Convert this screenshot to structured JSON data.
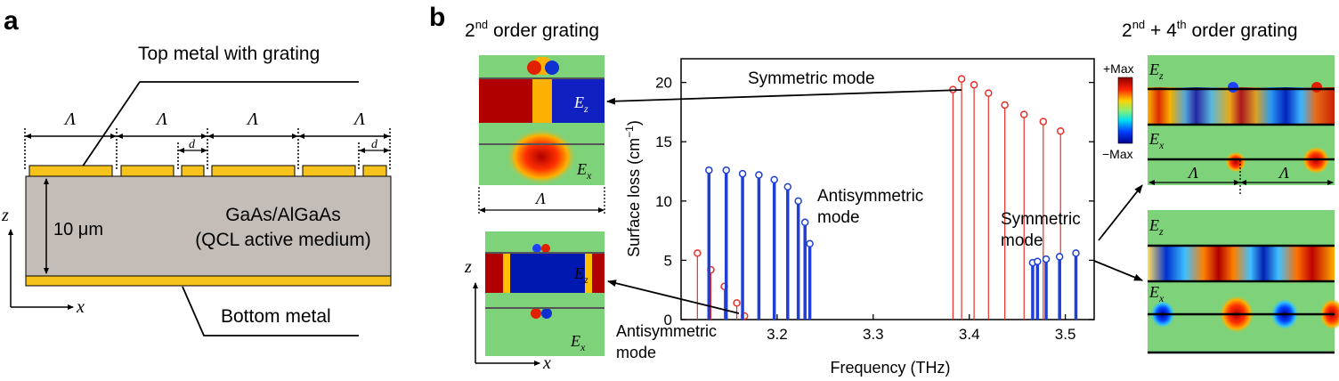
{
  "panel_a": {
    "letter": "a",
    "top_label": "Top metal with grating",
    "period_symbol": "Λ",
    "gap_symbol": "d",
    "thickness_label": "10 μm",
    "material_line1": "GaAs/AlGaAs",
    "material_line2": "(QCL active medium)",
    "bottom_label": "Bottom metal",
    "axis_z": "z",
    "axis_x": "x"
  },
  "panel_b": {
    "letter": "b",
    "left_title_num": "2",
    "left_title_sup": "nd",
    "left_title_rest": " order grating",
    "right_title_a": "2",
    "right_title_a_sup": "nd",
    "right_title_mid": " + 4",
    "right_title_b_sup": "th",
    "right_title_rest": " order grating",
    "field_ez": "E",
    "field_ez_sub": "z",
    "field_ex": "E",
    "field_ex_sub": "x",
    "period_symbol": "Λ",
    "axis_z": "z",
    "axis_x": "x",
    "colorbar_max": "+Max",
    "colorbar_min": "−Max",
    "ann_symmetric_top": "Symmetric mode",
    "ann_antisym_mid_1": "Antisymmetric",
    "ann_antisym_mid_2": "mode",
    "ann_symmetric_right_1": "Symmetric",
    "ann_symmetric_right_2": "mode",
    "ann_antisym_bottom_1": "Antisymmetric",
    "ann_antisym_bottom_2": "mode"
  },
  "chart_data": {
    "type": "stem",
    "xlabel": "Frequency (THz)",
    "ylabel": "Surface loss (cm−1)",
    "ylabel_main": "Surface loss (cm",
    "ylabel_sup": "−1",
    "ylabel_end": ")",
    "xlim": [
      3.1,
      3.53
    ],
    "ylim": [
      0,
      22
    ],
    "xticks": [
      3.2,
      3.3,
      3.4,
      3.5
    ],
    "xtick_labels": [
      "3.2",
      "3.3",
      "3.4",
      "3.5"
    ],
    "yticks": [
      0,
      5,
      10,
      15,
      20
    ],
    "ytick_labels": [
      "0",
      "5",
      "10",
      "15",
      "20"
    ],
    "series": [
      {
        "color": "#e8302a",
        "style": "thin",
        "x": [
          3.117,
          3.131,
          3.145,
          3.158,
          3.166,
          3.383,
          3.392,
          3.405,
          3.42,
          3.437,
          3.457,
          3.477,
          3.495
        ],
        "y": [
          5.6,
          4.2,
          2.8,
          1.4,
          0.3,
          19.4,
          20.3,
          19.8,
          19.1,
          18.1,
          17.3,
          16.7,
          15.9
        ]
      },
      {
        "color": "#1f3fd6",
        "style": "thick",
        "x": [
          3.129,
          3.147,
          3.164,
          3.181,
          3.197,
          3.211,
          3.222,
          3.229,
          3.234,
          3.466,
          3.471,
          3.48,
          3.494,
          3.511
        ],
        "y": [
          12.6,
          12.6,
          12.3,
          12.2,
          11.8,
          11.2,
          10.0,
          8.2,
          6.4,
          4.8,
          4.9,
          5.1,
          5.3,
          5.6
        ]
      }
    ]
  },
  "colors": {
    "gold": "#f6c21c",
    "substrate": "#c4bcb6",
    "field_red": "#d01a0e",
    "field_blue": "#1422c8",
    "field_green": "#7ed37a"
  }
}
